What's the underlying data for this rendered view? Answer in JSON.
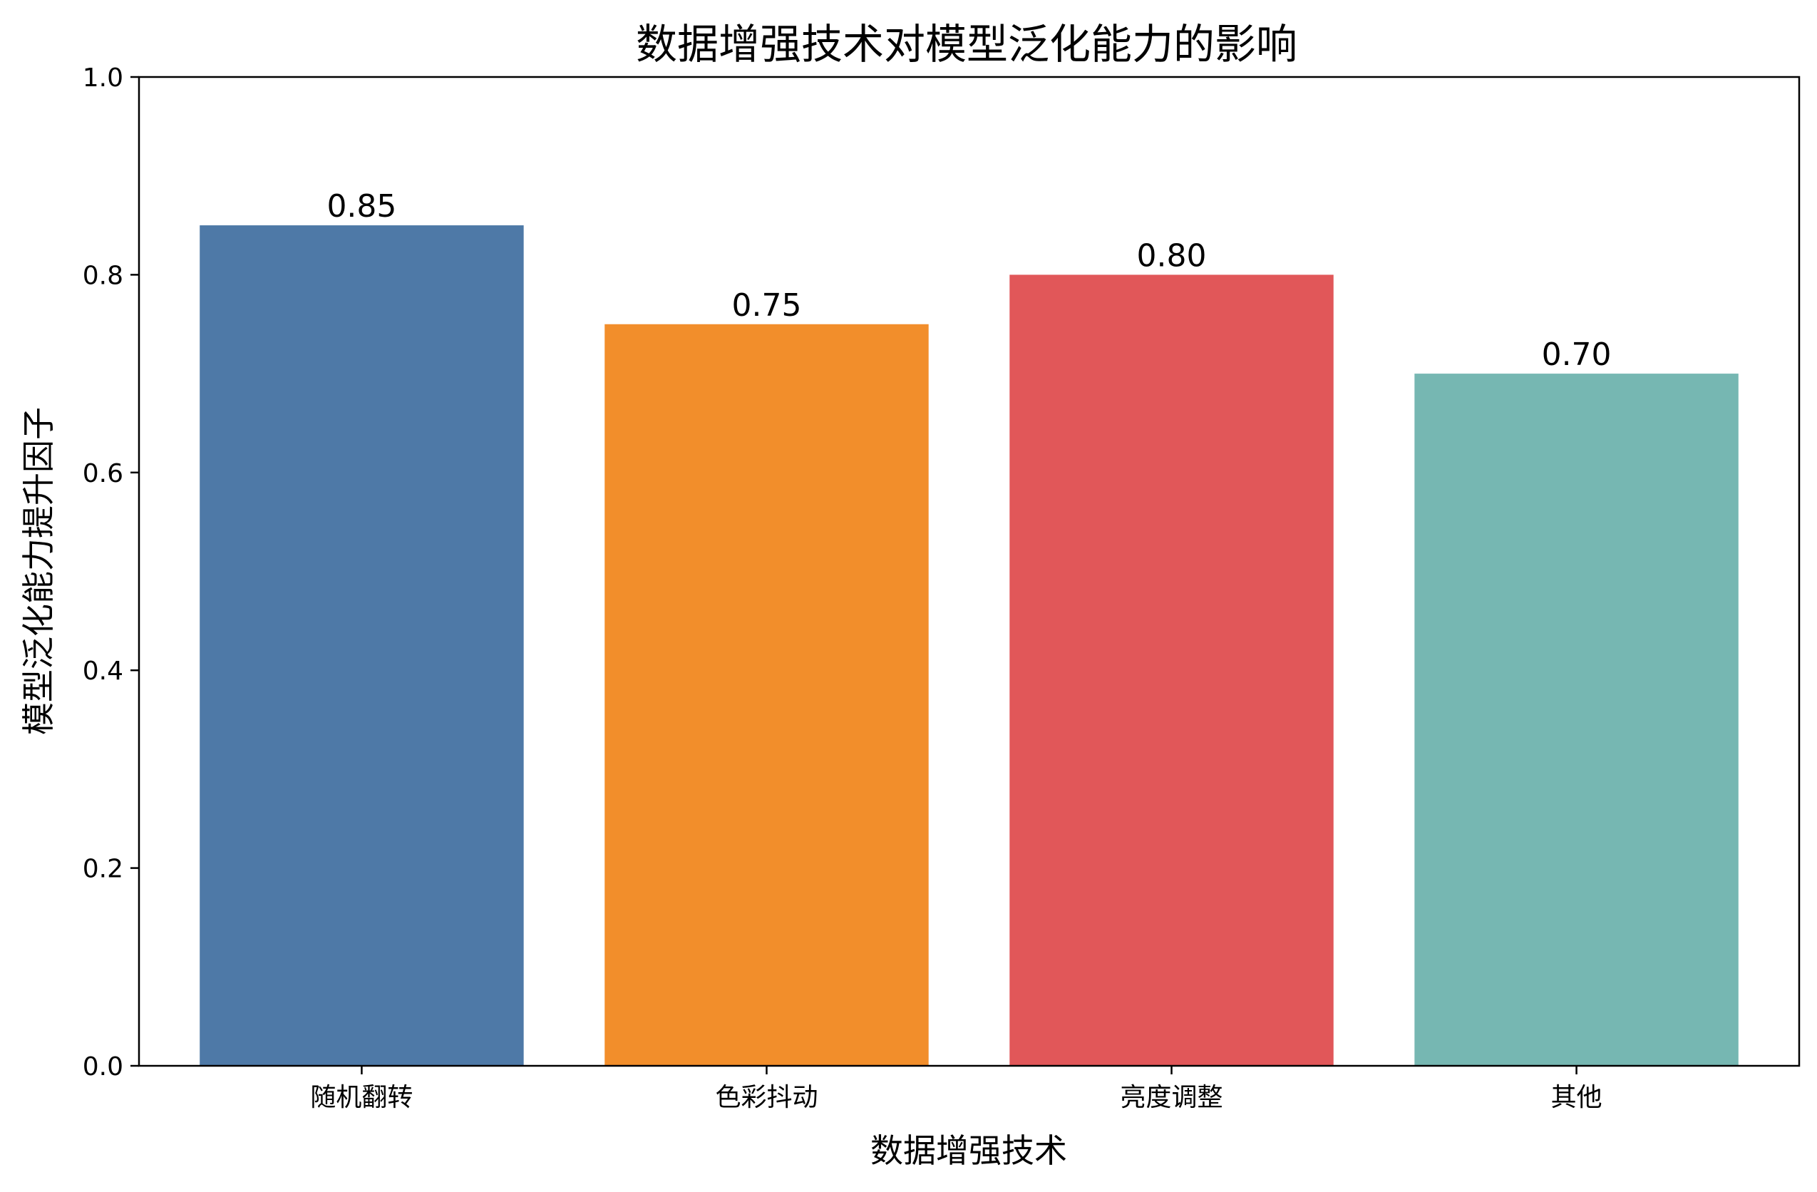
{
  "chart_data": {
    "type": "bar",
    "title": "数据增强技术对模型泛化能力的影响",
    "xlabel": "数据增强技术",
    "ylabel": "模型泛化能力提升因子",
    "categories": [
      "随机翻转",
      "色彩抖动",
      "亮度调整",
      "其他"
    ],
    "values": [
      0.85,
      0.75,
      0.8,
      0.7
    ],
    "value_labels": [
      "0.85",
      "0.75",
      "0.80",
      "0.70"
    ],
    "colors": [
      "#4e79a7",
      "#f28e2b",
      "#e15759",
      "#76b7b2"
    ],
    "ylim": [
      0,
      1.0
    ],
    "yticks": [
      0.0,
      0.2,
      0.4,
      0.6,
      0.8,
      1.0
    ],
    "ytick_labels": [
      "0.0",
      "0.2",
      "0.4",
      "0.6",
      "0.8",
      "1.0"
    ],
    "grid": false,
    "legend": "none"
  }
}
